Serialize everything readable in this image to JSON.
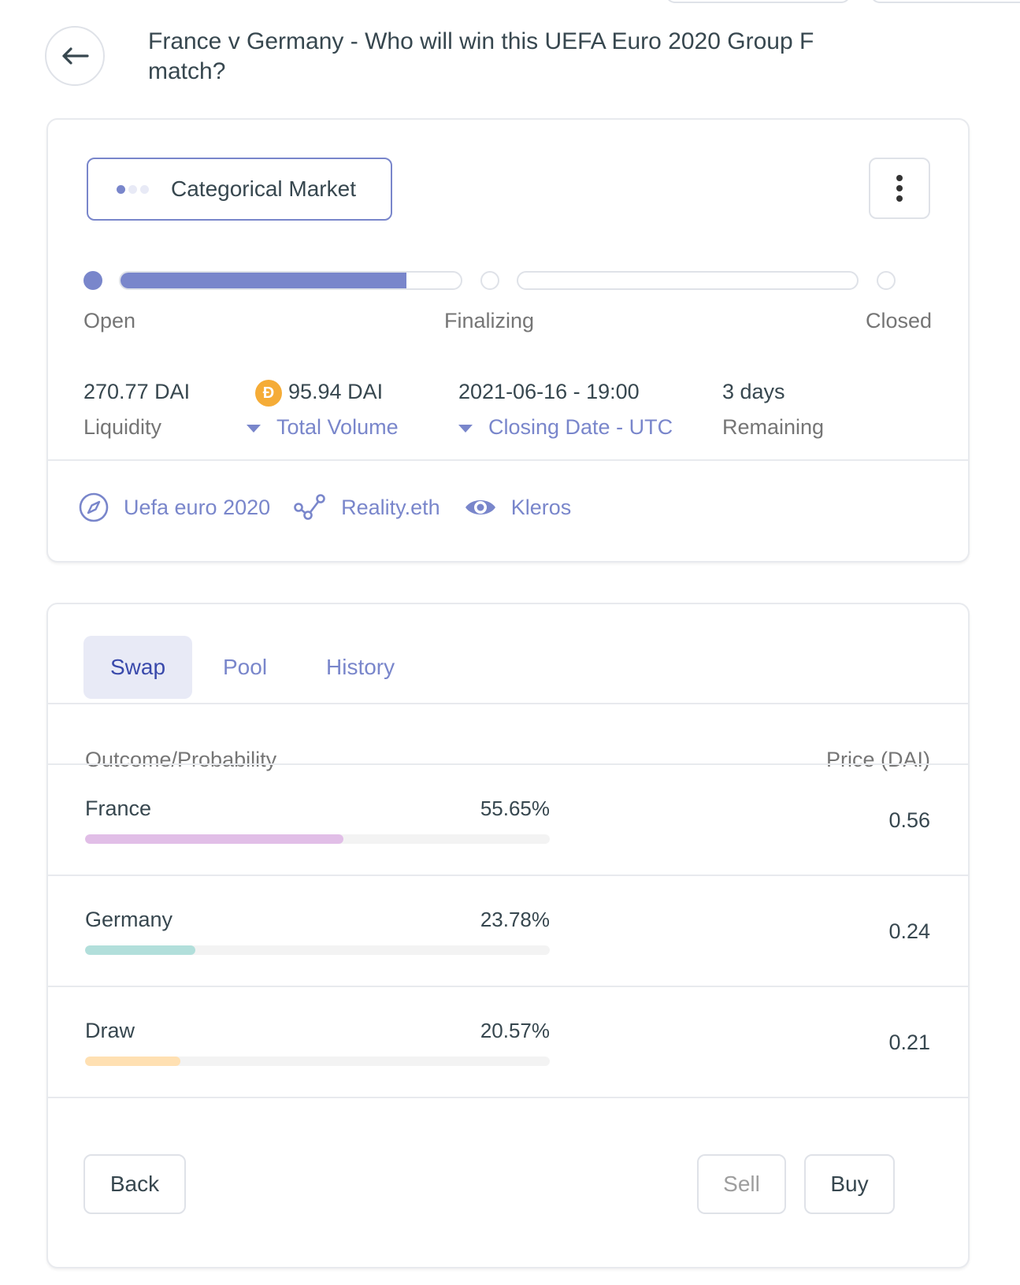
{
  "header": {
    "title": "France v Germany - Who will win this UEFA Euro 2020 Group F match?"
  },
  "market": {
    "type_label": "Categorical Market",
    "stages": [
      {
        "label": "Open"
      },
      {
        "label": "Finalizing"
      },
      {
        "label": "Closed"
      }
    ],
    "open_progress_percent": 84,
    "stats": {
      "liquidity_value": "270.77 DAI",
      "liquidity_label": "Liquidity",
      "volume_value": "95.94 DAI",
      "volume_label": "Total Volume",
      "closing_value": "2021-06-16 - 19:00",
      "closing_label": "Closing Date - UTC",
      "remaining_value": "3 days",
      "remaining_label": "Remaining"
    },
    "links": {
      "category": "Uefa euro 2020",
      "oracle": "Reality.eth",
      "arbitrator": "Kleros"
    }
  },
  "trade": {
    "tabs": [
      {
        "label": "Swap"
      },
      {
        "label": "Pool"
      },
      {
        "label": "History"
      }
    ],
    "headers": {
      "outcome": "Outcome/Probability",
      "price": "Price (DAI)"
    },
    "outcomes": [
      {
        "name": "France",
        "probability": "55.65%",
        "probability_value": 55.65,
        "price": "0.56",
        "color": "#e1bee7"
      },
      {
        "name": "Germany",
        "probability": "23.78%",
        "probability_value": 23.78,
        "price": "0.24",
        "color": "#b2dfdb"
      },
      {
        "name": "Draw",
        "probability": "20.57%",
        "probability_value": 20.57,
        "price": "0.21",
        "color": "#ffe0b2"
      }
    ],
    "buttons": {
      "back": "Back",
      "sell": "Sell",
      "buy": "Buy"
    }
  },
  "colors": {
    "accent": "#7986cb",
    "dai_coin": "#f5ac37"
  }
}
